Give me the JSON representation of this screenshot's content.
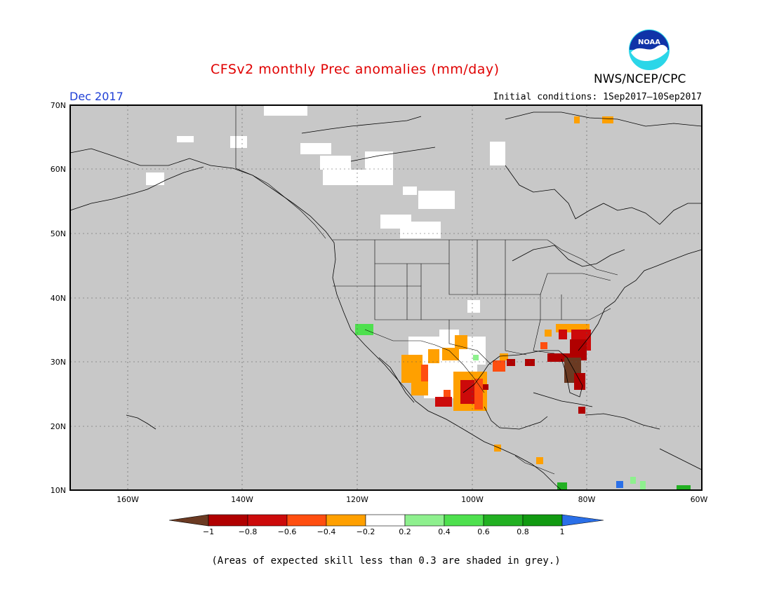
{
  "header": {
    "title": "CFSv2 monthly Prec anomalies (mm/day)",
    "agency": "NWS/NCEP/CPC",
    "logo_text": "NOAA",
    "month": "Dec 2017",
    "initial_conditions": "Initial conditions: 1Sep2017–10Sep2017"
  },
  "map": {
    "lat_labels": [
      "70N",
      "60N",
      "50N",
      "40N",
      "30N",
      "20N",
      "10N"
    ],
    "lon_labels": [
      "160W",
      "140W",
      "120W",
      "100W",
      "80W",
      "60W"
    ],
    "extent": {
      "lon_min": -170,
      "lon_max": -60,
      "lat_min": 10,
      "lat_max": 70
    },
    "background_color": "#c8c8c8"
  },
  "colorbar": {
    "tick_labels": [
      "−1",
      "−0.8",
      "−0.6",
      "−0.4",
      "−0.2",
      "0.2",
      "0.4",
      "0.6",
      "0.8",
      "1"
    ],
    "bins": [
      {
        "range": "< -1",
        "color": "#6b3a22"
      },
      {
        "range": "-1 to -0.8",
        "color": "#b00000"
      },
      {
        "range": "-0.8 to -0.6",
        "color": "#cc0a0a"
      },
      {
        "range": "-0.6 to -0.4",
        "color": "#ff4e10"
      },
      {
        "range": "-0.4 to -0.2",
        "color": "#ffa000"
      },
      {
        "range": "-0.2 to 0.2",
        "color": "#ffffff"
      },
      {
        "range": "0.2 to 0.4",
        "color": "#8ef08e"
      },
      {
        "range": "0.4 to 0.6",
        "color": "#4ee04e"
      },
      {
        "range": "0.6 to 0.8",
        "color": "#22b022"
      },
      {
        "range": "0.8 to 1",
        "color": "#119a11"
      },
      {
        "range": "> 1",
        "color": "#2a6fe8"
      }
    ]
  },
  "footnote": "(Areas of expected skill less than 0.3 are shaded in grey.)"
}
